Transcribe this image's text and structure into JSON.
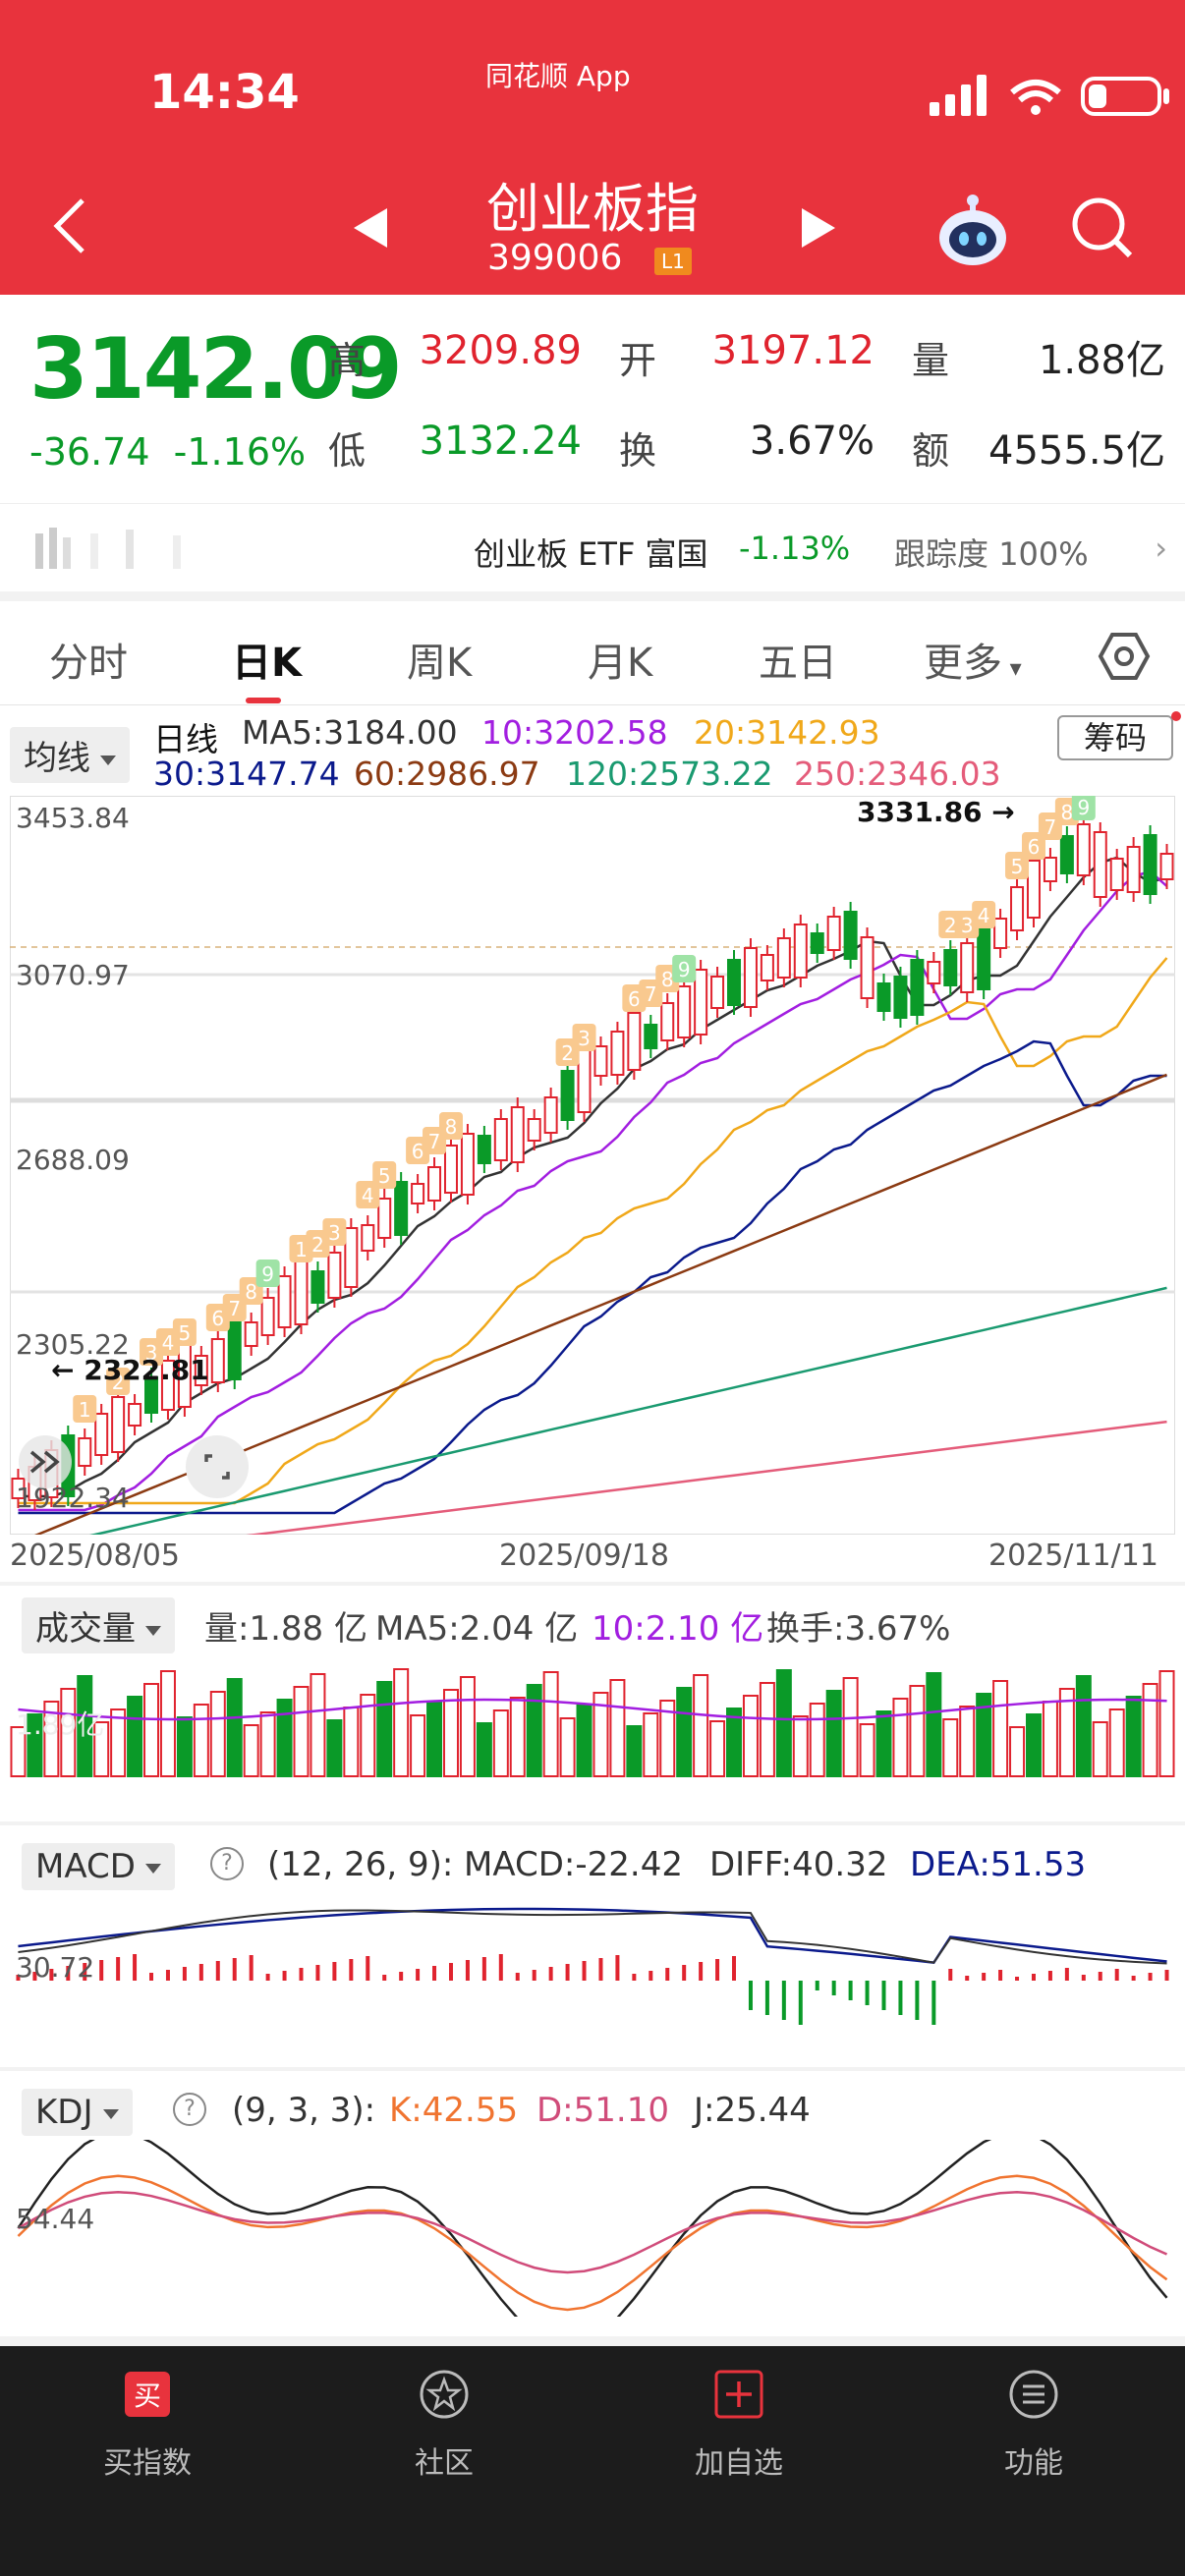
{
  "status": {
    "time": "14:34",
    "app": "同花顺 App"
  },
  "header": {
    "title": "创业板指",
    "code": "399006",
    "level": "L1"
  },
  "quote": {
    "price": "3142.09",
    "change": "-36.74",
    "change_pct": "-1.16%",
    "high_label": "高",
    "high": "3209.89",
    "open_label": "开",
    "open": "3197.12",
    "vol_label": "量",
    "vol": "1.88亿",
    "low_label": "低",
    "low": "3132.24",
    "turn_label": "换",
    "turn": "3.67%",
    "amt_label": "额",
    "amt": "4555.5亿"
  },
  "etf": {
    "name": "创业板 ETF 富国",
    "pct": "-1.13%",
    "track_label": "跟踪度",
    "track": "100%"
  },
  "tabs": [
    "分时",
    "日K",
    "周K",
    "月K",
    "五日",
    "更多"
  ],
  "ma_panel": {
    "selector": "均线",
    "line_type": "日线",
    "ma5": "MA5:3184.00",
    "ma10": "10:3202.58",
    "ma20": "20:3142.93",
    "ma30": "30:3147.74",
    "ma60": "60:2986.97",
    "ma120": "120:2573.22",
    "ma250": "250:2346.03",
    "chips": "筹码",
    "p_high": "3453.84",
    "p_mid1": "3070.97",
    "p_mid2": "2688.09",
    "p_low1": "2305.22",
    "p_low": "1922.34",
    "max_note": "3331.86",
    "min_note": "2322.81",
    "d_start": "2025/08/05",
    "d_mid": "2025/09/18",
    "d_end": "2025/11/11"
  },
  "volume": {
    "selector": "成交量",
    "vol": "量:1.88 亿",
    "ma5": "MA5:2.04 亿",
    "ma10": "10:2.10 亿",
    "turn": "换手:3.67%",
    "axis": "1.89亿"
  },
  "macd": {
    "selector": "MACD",
    "params": "(12, 26, 9):",
    "macd": "MACD:-22.42",
    "diff": "DIFF:40.32",
    "dea": "DEA:51.53",
    "axis": "30.72"
  },
  "kdj": {
    "selector": "KDJ",
    "params": "(9, 3, 3):",
    "k": "K:42.55",
    "d": "D:51.10",
    "j": "J:25.44",
    "axis": "54.44"
  },
  "nav": [
    "买指数",
    "社区",
    "加自选",
    "功能"
  ],
  "colors": {
    "up": "#e0232e",
    "down": "#0a9a28",
    "ma5": "#333333",
    "ma10": "#a21ee0",
    "ma20": "#f0a81a",
    "ma30": "#0b1a8c",
    "ma60": "#8b3a12",
    "ma120": "#1a9a70",
    "ma250": "#e45c7a"
  }
}
